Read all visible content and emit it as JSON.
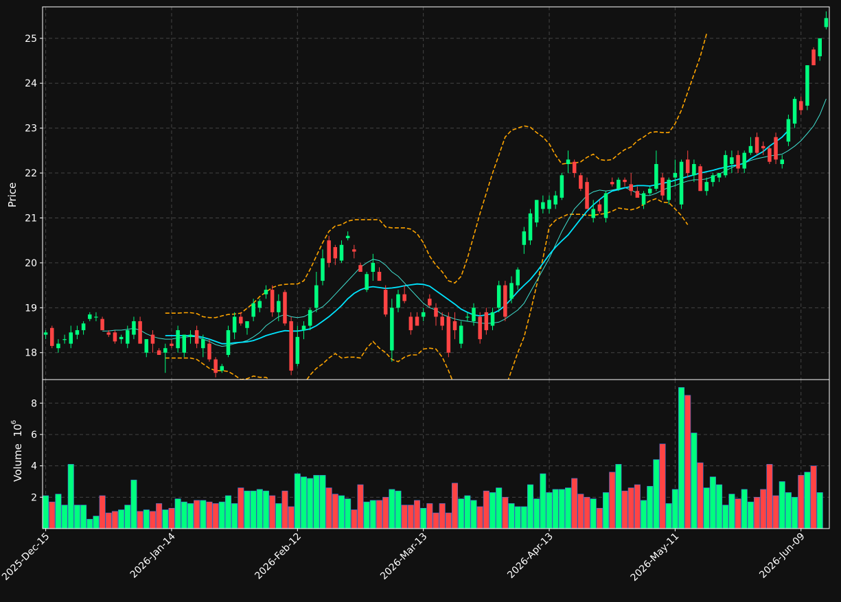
{
  "chart_data": {
    "type": "candlestick",
    "background": "#111111",
    "up_color": "#00ff7f",
    "down_color": "#ff4444",
    "sma_short_color": "#40e0d0",
    "sma_long_color": "#00e5ff",
    "band_color": "#ffa500",
    "grid": true,
    "price_panel": {
      "ylabel": "Price",
      "yticks": [
        18,
        19,
        20,
        21,
        22,
        23,
        24,
        25
      ],
      "ylim": [
        17.4,
        25.7
      ]
    },
    "volume_panel": {
      "ylabel": "Volume",
      "exponent_label": "10",
      "exponent": "6",
      "yticks": [
        2,
        4,
        6,
        8
      ],
      "ylim": [
        0,
        9.5
      ]
    },
    "xticks": [
      {
        "index": 0,
        "label": "2025-Dec-15"
      },
      {
        "index": 20,
        "label": "2026-Jan-14"
      },
      {
        "index": 40,
        "label": "2026-Feb-12"
      },
      {
        "index": 60,
        "label": "2026-Mar-13"
      },
      {
        "index": 80,
        "label": "2026-Apr-13"
      },
      {
        "index": 100,
        "label": "2026-May-11"
      },
      {
        "index": 120,
        "label": "2026-Jun-09"
      }
    ],
    "candles_ohlc": [
      [
        18.4,
        18.5,
        18.3,
        18.45
      ],
      [
        18.55,
        18.6,
        18.1,
        18.15
      ],
      [
        18.1,
        18.3,
        18.0,
        18.2
      ],
      [
        18.3,
        18.4,
        18.2,
        18.3
      ],
      [
        18.2,
        18.6,
        18.1,
        18.45
      ],
      [
        18.4,
        18.6,
        18.3,
        18.5
      ],
      [
        18.5,
        18.7,
        18.4,
        18.65
      ],
      [
        18.75,
        18.9,
        18.7,
        18.85
      ],
      [
        18.8,
        18.9,
        18.7,
        18.8
      ],
      [
        18.75,
        18.8,
        18.5,
        18.5
      ],
      [
        18.45,
        18.5,
        18.35,
        18.4
      ],
      [
        18.45,
        18.5,
        18.2,
        18.25
      ],
      [
        18.3,
        18.4,
        18.2,
        18.35
      ],
      [
        18.2,
        18.6,
        18.1,
        18.5
      ],
      [
        18.4,
        18.8,
        18.3,
        18.7
      ],
      [
        18.7,
        18.8,
        18.2,
        18.2
      ],
      [
        18.0,
        18.3,
        17.9,
        18.3
      ],
      [
        18.4,
        18.5,
        18.0,
        18.2
      ],
      [
        18.05,
        18.1,
        17.95,
        17.95
      ],
      [
        18.0,
        18.2,
        17.55,
        18.1
      ],
      [
        18.2,
        18.3,
        18.1,
        18.15
      ],
      [
        18.1,
        18.6,
        18.0,
        18.5
      ],
      [
        18.0,
        18.4,
        17.9,
        18.4
      ],
      [
        18.35,
        18.5,
        18.2,
        18.4
      ],
      [
        18.5,
        18.6,
        18.1,
        18.2
      ],
      [
        18.1,
        18.4,
        17.9,
        18.3
      ],
      [
        18.2,
        18.3,
        17.8,
        17.85
      ],
      [
        17.85,
        17.9,
        17.45,
        17.55
      ],
      [
        17.6,
        17.75,
        17.55,
        17.7
      ],
      [
        17.95,
        18.6,
        17.9,
        18.5
      ],
      [
        18.45,
        18.9,
        18.3,
        18.8
      ],
      [
        18.8,
        18.9,
        18.6,
        18.65
      ],
      [
        18.55,
        18.7,
        18.4,
        18.7
      ],
      [
        18.8,
        19.2,
        18.7,
        19.1
      ],
      [
        19.0,
        19.2,
        18.9,
        19.15
      ],
      [
        19.3,
        19.5,
        19.2,
        19.4
      ],
      [
        19.4,
        19.5,
        18.8,
        18.9
      ],
      [
        18.9,
        19.3,
        18.7,
        19.15
      ],
      [
        19.35,
        19.4,
        18.6,
        18.65
      ],
      [
        18.7,
        18.8,
        17.5,
        17.6
      ],
      [
        17.75,
        18.6,
        17.7,
        18.35
      ],
      [
        18.5,
        18.7,
        18.3,
        18.6
      ],
      [
        18.6,
        19.0,
        18.5,
        18.95
      ],
      [
        19.0,
        19.8,
        18.9,
        19.5
      ],
      [
        19.6,
        20.3,
        19.5,
        20.1
      ],
      [
        20.5,
        20.6,
        19.9,
        20.0
      ],
      [
        20.35,
        20.4,
        19.95,
        20.1
      ],
      [
        20.05,
        20.5,
        20.0,
        20.4
      ],
      [
        20.55,
        20.7,
        20.5,
        20.6
      ],
      [
        20.3,
        20.4,
        20.1,
        20.25
      ],
      [
        19.95,
        20.0,
        19.8,
        19.8
      ],
      [
        19.4,
        19.8,
        19.35,
        19.75
      ],
      [
        19.8,
        20.2,
        19.6,
        20.0
      ],
      [
        19.8,
        19.9,
        19.6,
        19.6
      ],
      [
        19.4,
        19.5,
        18.8,
        18.85
      ],
      [
        18.05,
        19.2,
        17.8,
        19.0
      ],
      [
        19.0,
        19.4,
        18.9,
        19.3
      ],
      [
        19.3,
        19.5,
        19.1,
        19.15
      ],
      [
        18.8,
        18.9,
        18.4,
        18.5
      ],
      [
        18.8,
        18.9,
        18.6,
        18.6
      ],
      [
        18.8,
        19.0,
        18.7,
        18.9
      ],
      [
        19.2,
        19.3,
        19.0,
        19.05
      ],
      [
        19.0,
        19.1,
        18.6,
        18.8
      ],
      [
        18.8,
        18.9,
        18.5,
        18.6
      ],
      [
        18.8,
        18.9,
        17.9,
        18.0
      ],
      [
        18.7,
        18.9,
        18.3,
        18.5
      ],
      [
        18.2,
        18.7,
        18.1,
        18.6
      ],
      [
        18.8,
        18.9,
        18.7,
        18.8
      ],
      [
        18.7,
        19.1,
        18.6,
        19.0
      ],
      [
        18.8,
        18.9,
        18.2,
        18.3
      ],
      [
        18.9,
        19.0,
        18.4,
        18.5
      ],
      [
        18.6,
        19.0,
        18.5,
        18.9
      ],
      [
        19.0,
        19.6,
        18.9,
        19.5
      ],
      [
        19.5,
        19.6,
        18.7,
        18.8
      ],
      [
        19.2,
        19.7,
        19.1,
        19.55
      ],
      [
        19.5,
        19.9,
        19.4,
        19.85
      ],
      [
        20.4,
        20.8,
        20.2,
        20.7
      ],
      [
        20.5,
        21.2,
        20.4,
        21.1
      ],
      [
        20.9,
        21.4,
        20.8,
        21.4
      ],
      [
        21.2,
        21.5,
        21.1,
        21.35
      ],
      [
        21.2,
        21.5,
        21.1,
        21.4
      ],
      [
        21.3,
        21.6,
        21.2,
        21.5
      ],
      [
        21.45,
        22.0,
        21.4,
        21.95
      ],
      [
        22.2,
        22.5,
        22.0,
        22.3
      ],
      [
        22.25,
        22.3,
        21.9,
        22.0
      ],
      [
        21.95,
        22.0,
        21.6,
        21.65
      ],
      [
        21.8,
        21.9,
        21.2,
        21.2
      ],
      [
        21.0,
        21.4,
        20.9,
        21.2
      ],
      [
        21.3,
        21.4,
        21.1,
        21.15
      ],
      [
        21.0,
        21.6,
        20.9,
        21.55
      ],
      [
        21.8,
        21.9,
        21.7,
        21.75
      ],
      [
        21.65,
        21.9,
        21.6,
        21.85
      ],
      [
        21.85,
        21.9,
        21.7,
        21.8
      ],
      [
        21.75,
        22.0,
        21.5,
        21.6
      ],
      [
        21.6,
        21.7,
        21.5,
        21.45
      ],
      [
        21.3,
        21.6,
        21.2,
        21.55
      ],
      [
        21.55,
        21.7,
        21.5,
        21.65
      ],
      [
        21.65,
        22.5,
        21.6,
        22.2
      ],
      [
        21.9,
        22.0,
        21.4,
        21.5
      ],
      [
        21.4,
        21.9,
        21.3,
        21.85
      ],
      [
        21.9,
        22.3,
        21.7,
        22.0
      ],
      [
        21.3,
        22.3,
        21.2,
        22.25
      ],
      [
        22.3,
        22.5,
        21.9,
        22.0
      ],
      [
        21.95,
        22.3,
        21.8,
        22.2
      ],
      [
        22.15,
        22.2,
        21.6,
        21.6
      ],
      [
        21.6,
        21.9,
        21.5,
        21.8
      ],
      [
        21.8,
        22.0,
        21.7,
        21.95
      ],
      [
        21.9,
        22.0,
        21.8,
        22.0
      ],
      [
        21.95,
        22.5,
        21.9,
        22.4
      ],
      [
        22.2,
        22.5,
        22.0,
        22.35
      ],
      [
        22.4,
        22.5,
        22.0,
        22.1
      ],
      [
        22.1,
        22.5,
        22.0,
        22.45
      ],
      [
        22.45,
        22.8,
        22.4,
        22.6
      ],
      [
        22.8,
        22.9,
        22.4,
        22.45
      ],
      [
        22.6,
        22.7,
        22.4,
        22.55
      ],
      [
        22.55,
        22.6,
        22.2,
        22.25
      ],
      [
        22.8,
        22.9,
        22.2,
        22.3
      ],
      [
        22.2,
        22.4,
        22.1,
        22.3
      ],
      [
        22.7,
        23.3,
        22.6,
        23.2
      ],
      [
        23.1,
        23.7,
        23.0,
        23.65
      ],
      [
        23.6,
        23.7,
        23.3,
        23.4
      ],
      [
        23.5,
        24.4,
        23.4,
        24.4
      ],
      [
        24.75,
        24.8,
        24.4,
        24.4
      ],
      [
        24.6,
        25.0,
        24.5,
        25.0
      ],
      [
        25.25,
        25.6,
        25.2,
        25.45
      ]
    ],
    "sma_short": [
      null,
      null,
      null,
      null,
      null,
      null,
      null,
      null,
      null,
      18.48,
      18.48,
      18.5,
      18.5,
      18.52,
      18.54,
      18.5,
      18.42,
      18.36,
      18.32,
      18.3,
      18.3,
      18.33,
      18.34,
      18.36,
      18.35,
      18.3,
      18.25,
      18.18,
      18.14,
      18.16,
      18.2,
      18.23,
      18.27,
      18.35,
      18.45,
      18.6,
      18.7,
      18.8,
      18.85,
      18.8,
      18.78,
      18.8,
      18.87,
      18.95,
      19.02,
      19.15,
      19.3,
      19.45,
      19.6,
      19.75,
      19.9,
      20.0,
      20.08,
      20.05,
      19.95,
      19.8,
      19.7,
      19.55,
      19.4,
      19.25,
      19.1,
      19.0,
      18.95,
      18.85,
      18.8,
      18.75,
      18.72,
      18.7,
      18.68,
      18.66,
      18.65,
      18.66,
      18.68,
      18.75,
      18.85,
      18.95,
      19.1,
      19.35,
      19.6,
      19.85,
      20.1,
      20.4,
      20.7,
      20.95,
      21.2,
      21.35,
      21.5,
      21.58,
      21.62,
      21.6,
      21.62,
      21.65,
      21.68,
      21.62,
      21.55,
      21.5,
      21.5,
      21.55,
      21.62,
      21.68,
      21.72,
      21.78,
      21.82,
      21.85,
      21.85,
      21.87,
      21.92,
      21.98,
      22.05,
      22.12,
      22.18,
      22.22,
      22.28,
      22.32,
      22.35,
      22.38,
      22.4,
      22.42,
      22.5,
      22.6,
      22.72,
      22.88,
      23.05,
      23.3,
      23.65
    ],
    "sma_long": [
      null,
      null,
      null,
      null,
      null,
      null,
      null,
      null,
      null,
      null,
      null,
      null,
      null,
      null,
      null,
      null,
      null,
      null,
      null,
      18.38,
      18.38,
      18.38,
      18.38,
      18.38,
      18.37,
      18.34,
      18.3,
      18.25,
      18.2,
      18.2,
      18.22,
      18.23,
      18.24,
      18.27,
      18.32,
      18.38,
      18.42,
      18.46,
      18.49,
      18.48,
      18.48,
      18.5,
      18.53,
      18.6,
      18.7,
      18.8,
      18.92,
      19.05,
      19.2,
      19.32,
      19.4,
      19.45,
      19.47,
      19.45,
      19.43,
      19.44,
      19.46,
      19.49,
      19.51,
      19.53,
      19.52,
      19.48,
      19.38,
      19.28,
      19.18,
      19.08,
      18.97,
      18.9,
      18.84,
      18.82,
      18.84,
      18.87,
      18.94,
      19.05,
      19.2,
      19.36,
      19.5,
      19.63,
      19.8,
      19.99,
      20.18,
      20.35,
      20.49,
      20.62,
      20.8,
      20.98,
      21.15,
      21.29,
      21.41,
      21.52,
      21.6,
      21.63,
      21.67,
      21.7,
      21.72,
      21.72,
      21.71,
      21.74,
      21.77,
      21.8,
      21.84,
      21.88,
      21.92,
      21.96,
      22.0,
      22.03,
      22.06,
      22.1,
      22.13,
      22.16,
      22.18,
      22.22,
      22.32,
      22.4,
      22.48,
      22.6,
      22.7,
      22.8,
      22.95
    ],
    "band_upper": [
      null,
      null,
      null,
      null,
      null,
      null,
      null,
      null,
      null,
      null,
      null,
      null,
      null,
      null,
      null,
      null,
      null,
      null,
      null,
      18.88,
      18.88,
      18.88,
      18.89,
      18.89,
      18.87,
      18.8,
      18.78,
      18.78,
      18.82,
      18.85,
      18.86,
      18.88,
      18.99,
      19.1,
      19.25,
      19.35,
      19.45,
      19.5,
      19.52,
      19.53,
      19.53,
      19.6,
      19.85,
      20.15,
      20.45,
      20.7,
      20.82,
      20.85,
      20.93,
      20.96,
      20.96,
      20.96,
      20.96,
      20.96,
      20.8,
      20.78,
      20.78,
      20.78,
      20.75,
      20.65,
      20.45,
      20.15,
      19.95,
      19.8,
      19.6,
      19.55,
      19.7,
      20.1,
      20.6,
      21.1,
      21.55,
      22.0,
      22.4,
      22.8,
      22.95,
      23.0,
      23.05,
      23.02,
      22.9,
      22.8,
      22.65,
      22.4,
      22.2,
      22.22,
      22.22,
      22.25,
      22.35,
      22.42,
      22.3,
      22.28,
      22.3,
      22.42,
      22.52,
      22.58,
      22.72,
      22.8,
      22.9,
      22.92,
      22.9,
      22.9,
      23.1,
      23.4,
      23.8,
      24.2,
      24.6,
      25.1
    ],
    "band_lower": [
      null,
      null,
      null,
      null,
      null,
      null,
      null,
      null,
      null,
      null,
      null,
      null,
      null,
      null,
      null,
      null,
      null,
      null,
      null,
      17.88,
      17.88,
      17.88,
      17.88,
      17.88,
      17.85,
      17.75,
      17.65,
      17.6,
      17.6,
      17.58,
      17.5,
      17.4,
      17.42,
      17.48,
      17.45,
      17.45,
      17.35,
      17.3,
      17.25,
      17.2,
      17.2,
      17.3,
      17.5,
      17.65,
      17.75,
      17.88,
      17.98,
      17.88,
      17.9,
      17.9,
      17.88,
      18.1,
      18.25,
      18.1,
      18.0,
      17.85,
      17.8,
      17.9,
      17.95,
      17.95,
      18.08,
      18.1,
      18.08,
      17.9,
      17.6,
      17.25,
      17.0,
      17.0,
      17.0,
      17.05,
      17.0,
      17.0,
      17.05,
      17.2,
      17.6,
      18.0,
      18.35,
      18.9,
      19.5,
      20.1,
      20.8,
      20.95,
      21.02,
      21.08,
      21.08,
      21.08,
      21.06,
      21.06,
      21.08,
      21.1,
      21.15,
      21.22,
      21.2,
      21.18,
      21.22,
      21.3,
      21.38,
      21.43,
      21.35,
      21.34,
      21.2,
      21.05,
      20.85
    ],
    "volume": [
      2.1,
      1.7,
      2.2,
      1.5,
      4.1,
      1.5,
      1.5,
      0.6,
      0.8,
      2.1,
      1.0,
      1.1,
      1.2,
      1.5,
      3.1,
      1.1,
      1.2,
      1.1,
      1.6,
      1.2,
      1.3,
      1.9,
      1.7,
      1.6,
      1.8,
      1.8,
      1.7,
      1.6,
      1.7,
      2.1,
      1.6,
      2.6,
      2.4,
      2.4,
      2.5,
      2.4,
      2.1,
      1.6,
      2.4,
      1.4,
      3.5,
      3.3,
      3.2,
      3.4,
      3.4,
      2.6,
      2.2,
      2.1,
      1.9,
      1.2,
      2.8,
      1.7,
      1.8,
      1.8,
      2.0,
      2.5,
      2.4,
      1.5,
      1.5,
      1.8,
      1.3,
      1.6,
      1.0,
      1.6,
      1.0,
      2.9,
      1.9,
      2.1,
      1.8,
      1.4,
      2.4,
      2.3,
      2.6,
      2.0,
      1.6,
      1.4,
      1.4,
      2.8,
      1.9,
      3.5,
      2.3,
      2.5,
      2.5,
      2.6,
      3.2,
      2.2,
      2.0,
      1.9,
      1.3,
      2.3,
      3.6,
      4.1,
      2.4,
      2.6,
      2.8,
      1.8,
      2.7,
      4.4,
      5.4,
      1.6,
      2.5,
      9.0,
      8.5,
      6.1,
      4.2,
      2.6,
      3.3,
      2.8,
      1.5,
      2.2,
      1.9,
      2.5,
      1.7,
      2.0,
      2.5,
      4.1,
      2.1,
      3.0,
      2.3,
      2.0,
      3.4,
      3.6,
      4.0,
      2.3
    ]
  }
}
